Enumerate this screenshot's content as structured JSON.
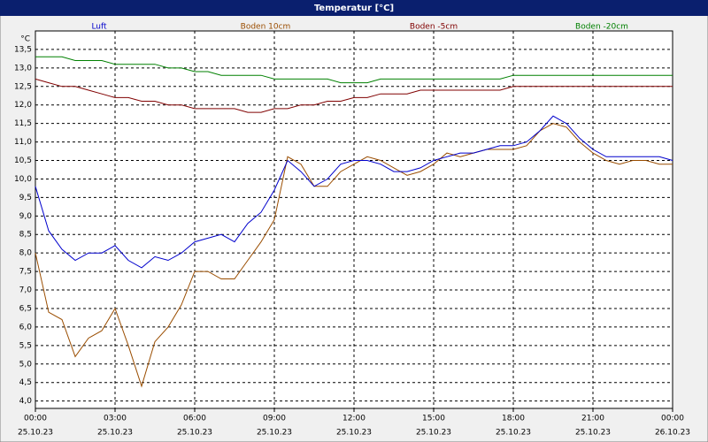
{
  "chart_data": {
    "type": "line",
    "title": "Temperatur [°C]",
    "ylabel": "°C",
    "x": [
      0,
      0.5,
      1,
      1.5,
      2,
      2.5,
      3,
      3.5,
      4,
      4.5,
      5,
      5.5,
      6,
      6.5,
      7,
      7.5,
      8,
      8.5,
      9,
      9.5,
      10,
      10.5,
      11,
      11.5,
      12,
      12.5,
      13,
      13.5,
      14,
      14.5,
      15,
      15.5,
      16,
      16.5,
      17,
      17.5,
      18,
      18.5,
      19,
      19.5,
      20,
      20.5,
      21,
      21.5,
      22,
      22.5,
      23,
      23.5,
      24
    ],
    "series": [
      {
        "name": "Luft",
        "color": "#0000cc",
        "values": [
          9.8,
          8.6,
          8.1,
          7.8,
          8.0,
          8.0,
          8.2,
          7.8,
          7.6,
          7.9,
          7.8,
          8.0,
          8.3,
          8.4,
          8.5,
          8.3,
          8.8,
          9.1,
          9.7,
          10.5,
          10.2,
          9.8,
          10.0,
          10.4,
          10.5,
          10.5,
          10.4,
          10.2,
          10.2,
          10.3,
          10.5,
          10.6,
          10.7,
          10.7,
          10.8,
          10.9,
          10.9,
          11.0,
          11.3,
          11.7,
          11.5,
          11.1,
          10.8,
          10.6,
          10.6,
          10.6,
          10.6,
          10.6,
          10.5
        ]
      },
      {
        "name": "Boden 10cm",
        "color": "#9a4d00",
        "values": [
          8.0,
          6.4,
          6.2,
          5.2,
          5.7,
          5.9,
          6.5,
          5.5,
          4.4,
          5.6,
          6.0,
          6.6,
          7.5,
          7.5,
          7.3,
          7.3,
          7.8,
          8.3,
          8.9,
          10.6,
          10.4,
          9.8,
          9.8,
          10.2,
          10.4,
          10.6,
          10.5,
          10.3,
          10.1,
          10.2,
          10.4,
          10.7,
          10.6,
          10.7,
          10.8,
          10.8,
          10.8,
          10.9,
          11.3,
          11.5,
          11.4,
          11.0,
          10.7,
          10.5,
          10.4,
          10.5,
          10.5,
          10.4,
          10.4
        ]
      },
      {
        "name": "Boden -5cm",
        "color": "#800000",
        "values": [
          12.7,
          12.6,
          12.5,
          12.5,
          12.4,
          12.3,
          12.2,
          12.2,
          12.1,
          12.1,
          12.0,
          12.0,
          11.9,
          11.9,
          11.9,
          11.9,
          11.8,
          11.8,
          11.9,
          11.9,
          12.0,
          12.0,
          12.1,
          12.1,
          12.2,
          12.2,
          12.3,
          12.3,
          12.3,
          12.4,
          12.4,
          12.4,
          12.4,
          12.4,
          12.4,
          12.4,
          12.5,
          12.5,
          12.5,
          12.5,
          12.5,
          12.5,
          12.5,
          12.5,
          12.5,
          12.5,
          12.5,
          12.5,
          12.5
        ]
      },
      {
        "name": "Boden -20cm",
        "color": "#008000",
        "values": [
          13.3,
          13.3,
          13.3,
          13.2,
          13.2,
          13.2,
          13.1,
          13.1,
          13.1,
          13.1,
          13.0,
          13.0,
          12.9,
          12.9,
          12.8,
          12.8,
          12.8,
          12.8,
          12.7,
          12.7,
          12.7,
          12.7,
          12.7,
          12.6,
          12.6,
          12.6,
          12.7,
          12.7,
          12.7,
          12.7,
          12.7,
          12.7,
          12.7,
          12.7,
          12.7,
          12.7,
          12.8,
          12.8,
          12.8,
          12.8,
          12.8,
          12.8,
          12.8,
          12.8,
          12.8,
          12.8,
          12.8,
          12.8,
          12.8
        ]
      }
    ],
    "xlim": [
      0,
      24
    ],
    "xticks": [
      {
        "value": 0,
        "label": "00:00"
      },
      {
        "value": 3,
        "label": "03:00"
      },
      {
        "value": 6,
        "label": "06:00"
      },
      {
        "value": 9,
        "label": "09:00"
      },
      {
        "value": 12,
        "label": "12:00"
      },
      {
        "value": 15,
        "label": "15:00"
      },
      {
        "value": 18,
        "label": "18:00"
      },
      {
        "value": 21,
        "label": "21:00"
      },
      {
        "value": 24,
        "label": "00:00"
      }
    ],
    "xtick_dates": [
      "25.10.23",
      "25.10.23",
      "25.10.23",
      "25.10.23",
      "25.10.23",
      "25.10.23",
      "25.10.23",
      "25.10.23",
      "26.10.23"
    ],
    "ylim": [
      3.8,
      14.0
    ],
    "yticks": [
      {
        "value": 4.0,
        "label": "4,0"
      },
      {
        "value": 4.5,
        "label": "4,5"
      },
      {
        "value": 5.0,
        "label": "5,0"
      },
      {
        "value": 5.5,
        "label": "5,5"
      },
      {
        "value": 6.0,
        "label": "6,0"
      },
      {
        "value": 6.5,
        "label": "6,5"
      },
      {
        "value": 7.0,
        "label": "7,0"
      },
      {
        "value": 7.5,
        "label": "7,5"
      },
      {
        "value": 8.0,
        "label": "8,0"
      },
      {
        "value": 8.5,
        "label": "8,5"
      },
      {
        "value": 9.0,
        "label": "9,0"
      },
      {
        "value": 9.5,
        "label": "9,5"
      },
      {
        "value": 10.0,
        "label": "10,0"
      },
      {
        "value": 10.5,
        "label": "10,5"
      },
      {
        "value": 11.0,
        "label": "11,0"
      },
      {
        "value": 11.5,
        "label": "11,5"
      },
      {
        "value": 12.0,
        "label": "12,0"
      },
      {
        "value": 12.5,
        "label": "12,5"
      },
      {
        "value": 13.0,
        "label": "13,0"
      },
      {
        "value": 13.5,
        "label": "13,5"
      }
    ],
    "grid": true
  }
}
